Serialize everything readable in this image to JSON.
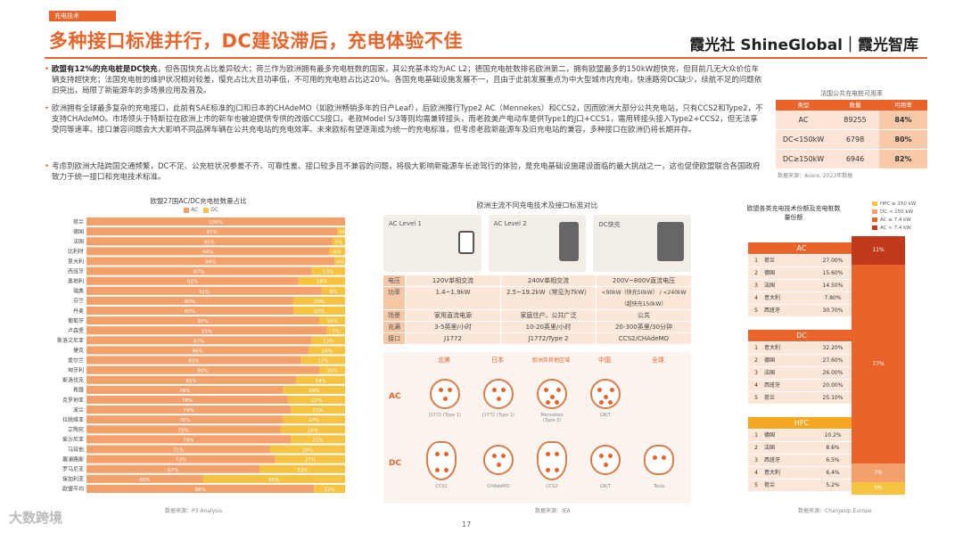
{
  "header": {
    "tag": "充电技术",
    "title": "多种接口标准并行，DC建设滞后，充电体验不佳",
    "brand": "霞光社 ShineGlobal｜霞光智库"
  },
  "bullets": [
    {
      "bold": "欧盟有12%的充电桩是DC快充",
      "text": "，但各国快充占比差异较大；荷兰作为欧洲拥有最多充电桩数的国家，其公充基本均为AC L2；德国充电桩数排名欧洲第二，拥有欧盟最多的150kW超快充，但目前几无大众价位车辆支持超快充；法国充电桩的维护状况相对较差，慢充占比大且功率低，不可用的充电桩占比达20%。各国充电基础设施发展不一，且由于此前发展重点为中大型城市内充电，快速路旁DC缺少，续航不足的问题依旧突出，局限了新能源车的多场景应用及普及。"
    },
    {
      "bold": "",
      "text": "欧洲拥有全球最多复杂的充电接口，此前有SAE标准的J口和日本的CHAdeMO（如欧洲畅销多年的日产Leaf），后欧洲推行Type2 AC（Mennekes）和CCS2，因而欧洲大部分公共充电站，只有CCS2和Type2，不支持CHAdeMO。市场领头于特斯拉在欧洲上市的新车也被迫提供专供的改版CCS接口，老款Model S/3等则均需兼转接头，而老款美产电动车是供Type1的J口+CCS1，需用转接头接入Type2+CCS2，但无法享受同等速率。接口兼容问题会大大影响不同品牌车辆在公共充电站的充电效率。未来欧标有望逐渐成为统一的充电标准，但考虑老款新能源车及旧充电站的兼容，多种接口在欧洲仍将长期并存。"
    },
    {
      "bold": "",
      "text": "考虑到欧洲大陆跨国交通频繁，DC不足、公充桩状况参差不齐、可靠性差、接口较多且不兼容的问题，将极大影响新能源车长途驾行的体验，是充电基础设施建设面临的最大挑战之一，这也促使欧盟联合各国政府致力于统一接口和充电技术标准。"
    }
  ],
  "side_table": {
    "caption": "法国公共充电桩可用率",
    "headers": [
      "类型",
      "数量",
      "可用率"
    ],
    "rows": [
      [
        "AC",
        "89255",
        "84%"
      ],
      [
        "DC<150kW",
        "6798",
        "80%"
      ],
      [
        "DC≥150kW",
        "6946",
        "82%"
      ]
    ],
    "source": "数据来源：Avere, 2023年数据"
  },
  "chart_data": {
    "type": "bar",
    "title": "欧盟27国AC/DC充电桩数量占比",
    "legend": [
      "AC",
      "DC"
    ],
    "colors": {
      "AC": "#f4a06b",
      "DC": "#f5c242"
    },
    "categories": [
      "荷兰",
      "德国",
      "法国",
      "比利时",
      "意大利",
      "西班牙",
      "奥地利",
      "瑞典",
      "芬兰",
      "丹麦",
      "葡萄牙",
      "卢森堡",
      "斯洛文尼亚",
      "捷克",
      "爱尔兰",
      "匈牙利",
      "斯洛伐克",
      "希腊",
      "克罗地亚",
      "波兰",
      "拉脱维亚",
      "立陶宛",
      "爱沙尼亚",
      "马耳他",
      "塞浦路斯",
      "罗马尼亚",
      "保加利亚",
      "欧盟平均"
    ],
    "ac": [
      100,
      97,
      95,
      94,
      96,
      87,
      82,
      91,
      80,
      80,
      90,
      93,
      87,
      86,
      83,
      90,
      81,
      76,
      78,
      79,
      76,
      75,
      79,
      71,
      73,
      67,
      45,
      88
    ],
    "dc": [
      0,
      3,
      5,
      6,
      4,
      13,
      18,
      9,
      20,
      20,
      10,
      7,
      13,
      14,
      17,
      10,
      19,
      24,
      22,
      21,
      24,
      25,
      21,
      29,
      27,
      33,
      55,
      12
    ],
    "source": "数据来源：P3 Analysis"
  },
  "middle": {
    "title": "欧洲主流不同充电技术及接口标准对比",
    "levels": [
      {
        "name": "AC Level 1"
      },
      {
        "name": "AC Level 2"
      },
      {
        "name": "DC快充"
      }
    ],
    "rows": [
      {
        "k": "电压",
        "v": [
          "120V单相交流",
          "240V单相交流",
          "200V~800V直流电压"
        ]
      },
      {
        "k": "功率",
        "v": [
          "1.4~1.9kW",
          "2.5~19.2kW（常见为7kW）",
          "<90kW（快充50kW） / <240kW（超快充150kW）"
        ]
      },
      {
        "k": "场景",
        "v": [
          "家用直流电源",
          "家庭住户、公共广泛",
          "公共"
        ]
      },
      {
        "k": "充满",
        "v": [
          "3-5英里/小时",
          "10-20英里/小时",
          "20-300英里/30分钟"
        ]
      },
      {
        "k": "接口",
        "v": [
          "J1772",
          "J1772/Type 2",
          "CCS2/CHAdeMO"
        ]
      }
    ],
    "regions": [
      "北美",
      "日本",
      "欧洲及其他区域",
      "中国",
      "全球"
    ],
    "ac_plugs": [
      "J1772 (Type 1)",
      "J1772 (Type 1)",
      "Mennekes (Type 2)",
      "GB/T"
    ],
    "dc_plugs": [
      "CCS1",
      "CHAdeMO",
      "CCS2",
      "GB/T",
      "Tesla"
    ],
    "source": "数据来源：IEA"
  },
  "right": {
    "title": "欧盟各类充电技术份额及充电桩数量份额",
    "legend": [
      "HPC ≥ 150 kW",
      "DC < 150 kW",
      "AC ≥ 7.4 kW",
      "AC < 7.4 kW"
    ],
    "ac": {
      "label": "AC",
      "rows": [
        [
          "1",
          "荷兰",
          "27.00%"
        ],
        [
          "2",
          "德国",
          "15.60%"
        ],
        [
          "3",
          "法国",
          "14.50%"
        ],
        [
          "4",
          "意大利",
          "7.80%"
        ],
        [
          "5",
          "西班牙",
          "30.70%"
        ]
      ]
    },
    "dc": {
      "label": "DC",
      "rows": [
        [
          "1",
          "意大利",
          "32.20%"
        ],
        [
          "2",
          "德国",
          "27.60%"
        ],
        [
          "3",
          "法国",
          "26.00%"
        ],
        [
          "4",
          "西班牙",
          "20.00%"
        ],
        [
          "5",
          "荷兰",
          "25.10%"
        ]
      ]
    },
    "hpc": {
      "label": "HPC",
      "rows": [
        [
          "1",
          "德国",
          "10.2%"
        ],
        [
          "2",
          "法国",
          "8.6%"
        ],
        [
          "3",
          "西班牙",
          "6.5%"
        ],
        [
          "4",
          "意大利",
          "6.4%"
        ],
        [
          "5",
          "荷兰",
          "5.2%"
        ]
      ]
    },
    "stack": [
      {
        "label": "11%",
        "pct": 11,
        "color": "#c0391b"
      },
      {
        "label": "77%",
        "pct": 77,
        "color": "#e8642a"
      },
      {
        "label": "7%",
        "pct": 7,
        "color": "#f4a06b"
      },
      {
        "label": "5%",
        "pct": 5,
        "color": "#f5c242"
      }
    ],
    "source": "数据来源：ChargeUp Europe"
  },
  "footer": {
    "page": "17",
    "watermark": "大数跨境"
  }
}
